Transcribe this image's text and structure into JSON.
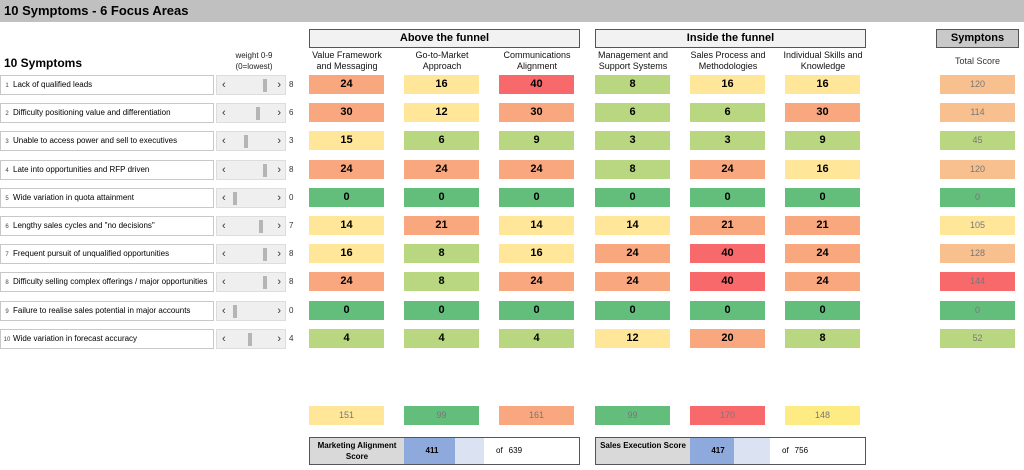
{
  "title": "10 Symptoms - 6 Focus Areas",
  "symptoms_heading": "10 Symptoms",
  "weight_heading": "weight 0-9 (0=lowest)",
  "groups": {
    "above": "Above the funnel",
    "inside": "Inside the funnel",
    "symptons": "Symptons",
    "total_label": "Total Score"
  },
  "columns": [
    {
      "label": "Value Framework and Messaging"
    },
    {
      "label": "Go-to-Market Approach"
    },
    {
      "label": "Communications Alignment"
    },
    {
      "label": "Management and Support Systems"
    },
    {
      "label": "Sales Process and Methodologies"
    },
    {
      "label": "Individual Skills and Knowledge"
    }
  ],
  "symptoms": [
    {
      "num": "1",
      "label": "Lack of qualified leads",
      "weight": "8",
      "weight_level": 8,
      "values": [
        "24",
        "16",
        "40",
        "8",
        "16",
        "16"
      ],
      "total": "120"
    },
    {
      "num": "2",
      "label": "Difficulty positioning value and differentiation",
      "weight": "6",
      "weight_level": 6,
      "values": [
        "30",
        "12",
        "30",
        "6",
        "6",
        "30"
      ],
      "total": "114"
    },
    {
      "num": "3",
      "label": "Unable to access power and sell to executives",
      "weight": "3",
      "weight_level": 3,
      "values": [
        "15",
        "6",
        "9",
        "3",
        "3",
        "9"
      ],
      "total": "45"
    },
    {
      "num": "4",
      "label": "Late into opportunities and RFP driven",
      "weight": "8",
      "weight_level": 8,
      "values": [
        "24",
        "24",
        "24",
        "8",
        "24",
        "16"
      ],
      "total": "120"
    },
    {
      "num": "5",
      "label": "Wide variation in quota attainment",
      "weight": "0",
      "weight_level": 0,
      "values": [
        "0",
        "0",
        "0",
        "0",
        "0",
        "0"
      ],
      "total": "0"
    },
    {
      "num": "6",
      "label": "Lengthy sales cycles and \"no decisions\"",
      "weight": "7",
      "weight_level": 7,
      "values": [
        "14",
        "21",
        "14",
        "14",
        "21",
        "21"
      ],
      "total": "105"
    },
    {
      "num": "7",
      "label": "Frequent pursuit of unqualified opportunities",
      "weight": "8",
      "weight_level": 8,
      "values": [
        "16",
        "8",
        "16",
        "24",
        "40",
        "24"
      ],
      "total": "128"
    },
    {
      "num": "8",
      "label": "Difficulty selling complex offerings / major opportunities",
      "weight": "8",
      "weight_level": 8,
      "values": [
        "24",
        "8",
        "24",
        "24",
        "40",
        "24"
      ],
      "total": "144"
    },
    {
      "num": "9",
      "label": "Failure to realise sales potential in major accounts",
      "weight": "0",
      "weight_level": 0,
      "values": [
        "0",
        "0",
        "0",
        "0",
        "0",
        "0"
      ],
      "total": "0"
    },
    {
      "num": "10",
      "label": "Wide variation in forecast accuracy",
      "weight": "4",
      "weight_level": 4,
      "values": [
        "4",
        "4",
        "4",
        "12",
        "20",
        "8"
      ],
      "total": "52"
    }
  ],
  "column_totals": [
    "151",
    "99",
    "161",
    "99",
    "170",
    "148"
  ],
  "column_total_colors": [
    "#ffe699",
    "#63be7b",
    "#f8a77e",
    "#63be7b",
    "#f8696b",
    "#ffeb84"
  ],
  "scores": {
    "marketing": {
      "label": "Marketing Alignment Score",
      "value": "411",
      "of_label": "of",
      "max": "639",
      "fraction": 0.643
    },
    "sales": {
      "label": "Sales Execution Score",
      "value": "417",
      "of_label": "of",
      "max": "756",
      "fraction": 0.552
    }
  },
  "icons": {
    "left_arrow": "chevron-left-icon",
    "right_arrow": "chevron-right-icon"
  }
}
